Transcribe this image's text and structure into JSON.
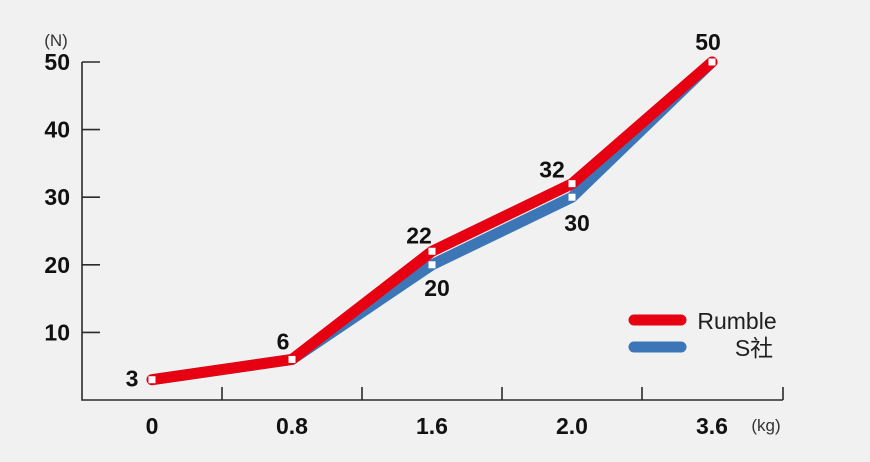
{
  "background_color": "#f1f1f1",
  "chart_data": {
    "type": "line",
    "title": "",
    "y_unit_label": "(N)",
    "x_unit_label": "(kg)",
    "xlabel": "",
    "ylabel": "",
    "categories": [
      "0",
      "0.8",
      "1.6",
      "2.0",
      "3.6"
    ],
    "yticks": [
      10,
      20,
      30,
      40,
      50
    ],
    "ylim": [
      0,
      50
    ],
    "grid": false,
    "marker": "white-square",
    "series": [
      {
        "name": "S社",
        "color": "#3c76b7",
        "values": [
          3,
          6,
          20,
          30,
          50
        ],
        "point_labels": [
          "",
          "",
          "20",
          "30",
          ""
        ]
      },
      {
        "name": "Rumble",
        "color": "#e60012",
        "values": [
          3,
          6,
          22,
          32,
          50
        ],
        "point_labels": [
          "3",
          "6",
          "22",
          "32",
          "50"
        ]
      }
    ],
    "legend_position": "right-middle",
    "legend": [
      {
        "label": "Rumble",
        "color": "#e60012"
      },
      {
        "label": "S社",
        "color": "#3c76b7"
      }
    ]
  }
}
